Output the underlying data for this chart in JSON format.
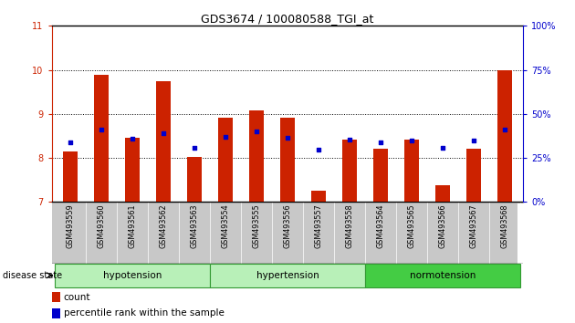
{
  "title": "GDS3674 / 100080588_TGI_at",
  "samples": [
    "GSM493559",
    "GSM493560",
    "GSM493561",
    "GSM493562",
    "GSM493563",
    "GSM493554",
    "GSM493555",
    "GSM493556",
    "GSM493557",
    "GSM493558",
    "GSM493564",
    "GSM493565",
    "GSM493566",
    "GSM493567",
    "GSM493568"
  ],
  "red_values": [
    8.15,
    9.88,
    8.45,
    9.75,
    8.02,
    8.92,
    9.08,
    8.92,
    7.25,
    8.42,
    8.2,
    8.42,
    7.38,
    8.2,
    10.0
  ],
  "blue_values": [
    8.35,
    8.65,
    8.43,
    8.57,
    8.23,
    8.47,
    8.6,
    8.45,
    8.18,
    8.42,
    8.35,
    8.4,
    8.22,
    8.4,
    8.65
  ],
  "ylim": [
    7,
    11
  ],
  "yticks": [
    7,
    8,
    9,
    10,
    11
  ],
  "right_yticks": [
    0,
    25,
    50,
    75,
    100
  ],
  "right_ytick_labels": [
    "0%",
    "25%",
    "50%",
    "75%",
    "100%"
  ],
  "bar_color": "#cc2200",
  "dot_color": "#0000cc",
  "bg_color": "#ffffff",
  "tick_label_color_left": "#cc2200",
  "tick_label_color_right": "#0000cc",
  "xticklabel_bg": "#c8c8c8",
  "group_defs": [
    {
      "start": 0,
      "end": 4,
      "label": "hypotension",
      "color": "#b8f0b8",
      "border": "#339933"
    },
    {
      "start": 5,
      "end": 9,
      "label": "hypertension",
      "color": "#b8f0b8",
      "border": "#339933"
    },
    {
      "start": 10,
      "end": 14,
      "label": "normotension",
      "color": "#44cc44",
      "border": "#339933"
    }
  ]
}
